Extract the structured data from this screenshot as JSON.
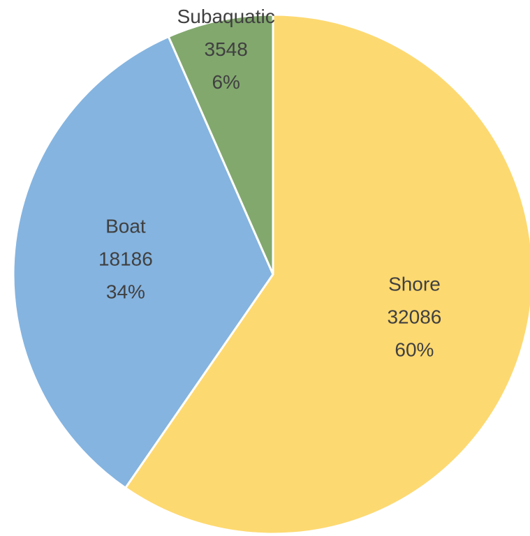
{
  "chart_data": {
    "type": "pie",
    "categories": [
      "Shore",
      "Boat",
      "Subaquatic"
    ],
    "values": [
      32086,
      18186,
      3548
    ],
    "percent_labels": [
      "60%",
      "34%",
      "6%"
    ],
    "colors": [
      "#fdd971",
      "#85b4e0",
      "#82a86e"
    ]
  }
}
